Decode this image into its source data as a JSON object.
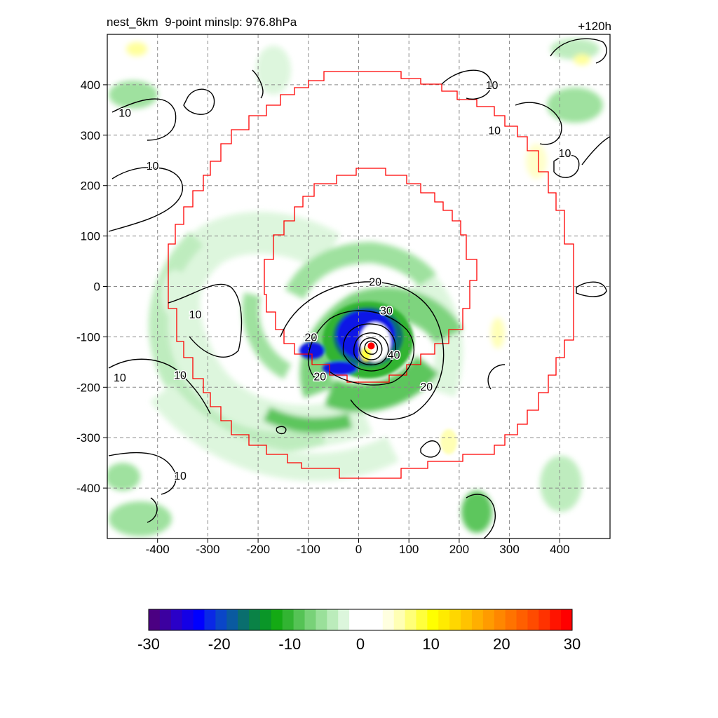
{
  "header": {
    "title_left": "nest_6km  9-point minslp: 976.8hPa",
    "title_right": "+120h"
  },
  "chart_data": {
    "type": "heatmap",
    "x_ticks": [
      -400,
      -300,
      -200,
      -100,
      0,
      100,
      200,
      300,
      400
    ],
    "y_ticks": [
      400,
      300,
      200,
      100,
      0,
      -100,
      -200,
      -300,
      -400
    ],
    "xlim": [
      -500,
      500
    ],
    "ylim": [
      -500,
      500
    ],
    "grid": true,
    "center": {
      "x": 25,
      "y": -118
    },
    "contour_labels": [
      {
        "text": "20",
        "x": 33,
        "y": 10
      },
      {
        "text": "30",
        "x": 55,
        "y": -47
      },
      {
        "text": "40",
        "x": 70,
        "y": -135
      },
      {
        "text": "20",
        "x": -95,
        "y": -100
      },
      {
        "text": "20",
        "x": -77,
        "y": -178
      },
      {
        "text": "20",
        "x": 135,
        "y": -198
      },
      {
        "text": "10",
        "x": -325,
        "y": -55
      },
      {
        "text": "10",
        "x": -355,
        "y": -175
      },
      {
        "text": "10",
        "x": -475,
        "y": -180
      },
      {
        "text": "10",
        "x": -465,
        "y": 345
      },
      {
        "text": "10",
        "x": -410,
        "y": 240
      },
      {
        "text": "10",
        "x": 270,
        "y": 310
      },
      {
        "text": "10",
        "x": 410,
        "y": 265
      },
      {
        "text": "10",
        "x": 265,
        "y": 400
      },
      {
        "text": "10",
        "x": -355,
        "y": -375
      }
    ],
    "colorbar": {
      "ticks": [
        "-30",
        "-20",
        "-10",
        "0",
        "10",
        "20",
        "30"
      ],
      "colors": [
        "#4b0082",
        "#3c00a0",
        "#2a00c8",
        "#1400e6",
        "#0000ff",
        "#0a28e6",
        "#0a46c8",
        "#0a5aa0",
        "#0a6e6e",
        "#0a8246",
        "#0a9628",
        "#14aa14",
        "#32b432",
        "#55c355",
        "#78d278",
        "#9ae09a",
        "#bbecbb",
        "#dcf6dc",
        "#ffffff",
        "#ffffff",
        "#ffffff",
        "#ffffe0",
        "#ffffb4",
        "#ffff78",
        "#ffff3c",
        "#ffff00",
        "#ffeb00",
        "#ffd700",
        "#ffc300",
        "#ffaf00",
        "#ff9b00",
        "#ff8700",
        "#ff7300",
        "#ff5f00",
        "#ff4b00",
        "#ff3200",
        "#ff1400",
        "#ff0000"
      ]
    }
  },
  "colors": {
    "green_light": "#dcf6dc",
    "green_mid": "#9ae09a",
    "green_dark": "#32b432",
    "blue": "#0a14e6",
    "yellow": "#ffff64",
    "grid": "#888888",
    "red_boundary": "#ff0000"
  }
}
